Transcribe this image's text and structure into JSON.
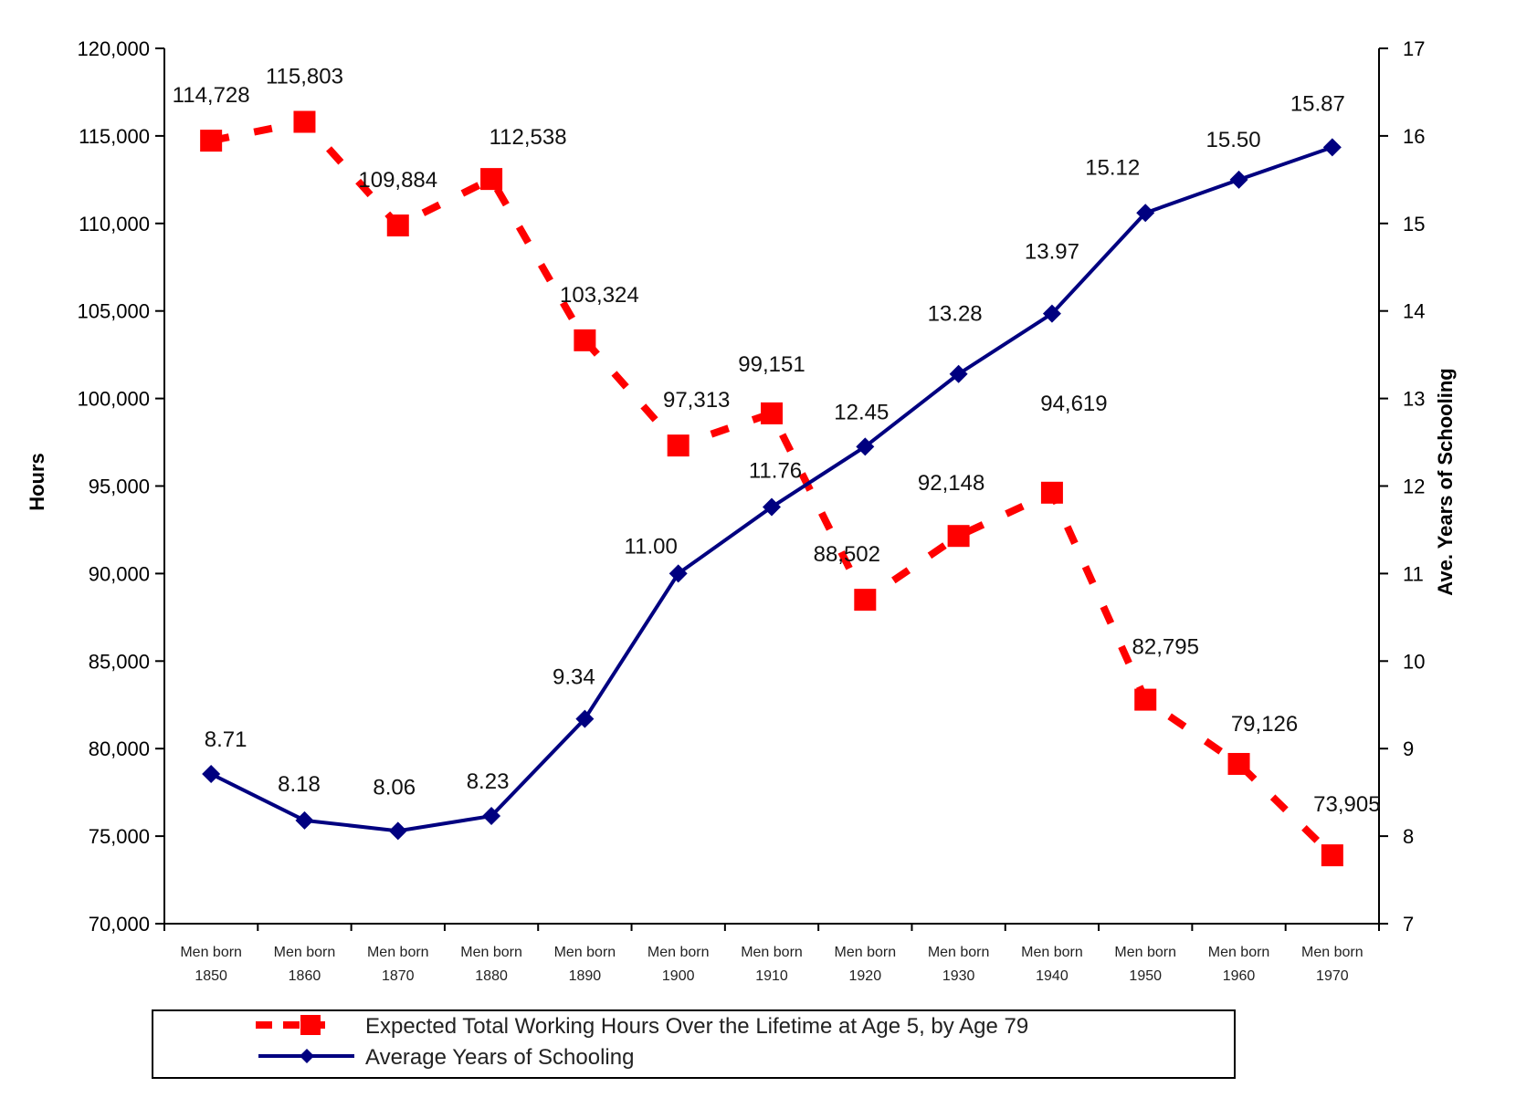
{
  "chart_data": {
    "type": "line",
    "categories": [
      [
        "Men born",
        "1850"
      ],
      [
        "Men born",
        "1860"
      ],
      [
        "Men born",
        "1870"
      ],
      [
        "Men born",
        "1880"
      ],
      [
        "Men born",
        "1890"
      ],
      [
        "Men born",
        "1900"
      ],
      [
        "Men born",
        "1910"
      ],
      [
        "Men born",
        "1920"
      ],
      [
        "Men born",
        "1930"
      ],
      [
        "Men born",
        "1940"
      ],
      [
        "Men born",
        "1950"
      ],
      [
        "Men born",
        "1960"
      ],
      [
        "Men born",
        "1970"
      ]
    ],
    "y_left": {
      "label": "Hours",
      "min": 70000,
      "max": 120000,
      "step": 5000,
      "tick_labels": [
        "70,000",
        "75,000",
        "80,000",
        "85,000",
        "90,000",
        "95,000",
        "100,000",
        "105,000",
        "110,000",
        "115,000",
        "120,000"
      ]
    },
    "y_right": {
      "label": "Ave. Years of Schooling",
      "min": 7,
      "max": 17,
      "step": 1,
      "tick_labels": [
        "7",
        "8",
        "9",
        "10",
        "11",
        "12",
        "13",
        "14",
        "15",
        "16",
        "17"
      ]
    },
    "series": [
      {
        "name": "Expected Total Working Hours Over the Lifetime at Age 5, by Age 79",
        "axis": "left",
        "color": "#ff0000",
        "style": "dashed-square",
        "values": [
          114728,
          115803,
          109884,
          112538,
          103324,
          97313,
          99151,
          88502,
          92148,
          94619,
          82795,
          79126,
          73905
        ],
        "labels": [
          "114,728",
          "115,803",
          "109,884",
          "112,538",
          "103,324",
          "97,313",
          "99,151",
          "88,502",
          "92,148",
          "94,619",
          "82,795",
          "79,126",
          "73,905"
        ]
      },
      {
        "name": "Average Years of Schooling",
        "axis": "right",
        "color": "#000080",
        "style": "solid-diamond",
        "values": [
          8.71,
          8.18,
          8.06,
          8.23,
          9.34,
          11.0,
          11.76,
          12.45,
          13.28,
          13.97,
          15.12,
          15.5,
          15.87
        ],
        "labels": [
          "8.71",
          "8.18",
          "8.06",
          "8.23",
          "9.34",
          "11.00",
          "11.76",
          "12.45",
          "13.28",
          "13.97",
          "15.12",
          "15.50",
          "15.87"
        ]
      }
    ],
    "legend": {
      "placement": "bottom",
      "items": [
        "Expected Total Working Hours Over the Lifetime at Age 5, by Age 79",
        "Average Years of Schooling"
      ]
    },
    "grid": false
  }
}
